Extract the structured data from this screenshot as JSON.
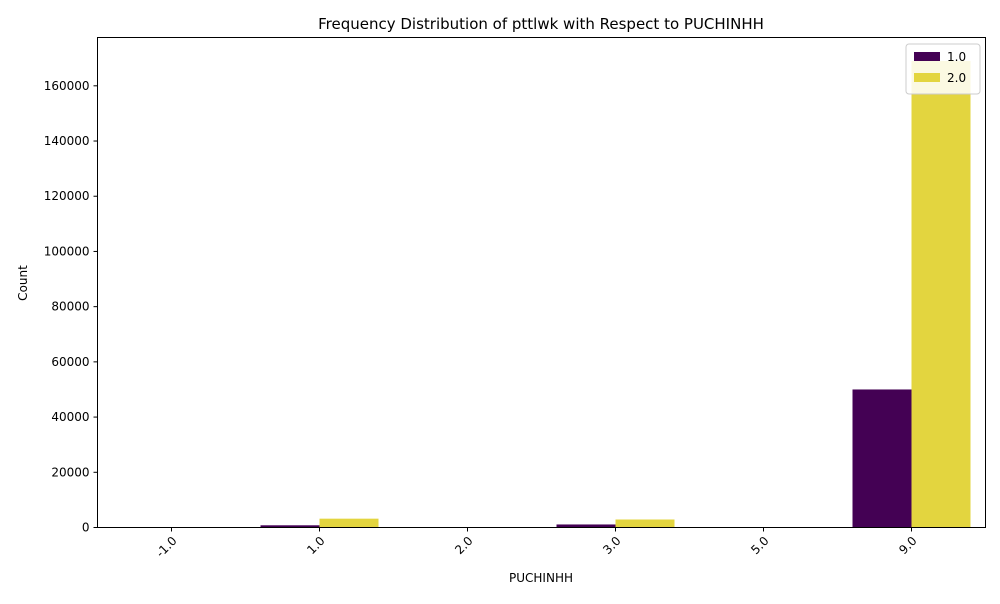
{
  "chart_data": {
    "type": "bar",
    "title": "Frequency Distribution of pttlwk with Respect to PUCHINHH",
    "xlabel": "PUCHINHH",
    "ylabel": "Count",
    "categories": [
      "-1.0",
      "1.0",
      "2.0",
      "3.0",
      "5.0",
      "9.0"
    ],
    "series": [
      {
        "name": "1.0",
        "color": "#440154",
        "values": [
          0,
          800,
          0,
          1100,
          0,
          50000
        ]
      },
      {
        "name": "2.0",
        "color": "#e3d53f",
        "values": [
          0,
          3200,
          0,
          2900,
          0,
          169000
        ]
      }
    ],
    "ylim": [
      0,
      177500
    ],
    "yticks": [
      0,
      20000,
      40000,
      60000,
      80000,
      100000,
      120000,
      140000,
      160000
    ],
    "ytick_labels": [
      "0",
      "20000",
      "40000",
      "60000",
      "80000",
      "100000",
      "120000",
      "140000",
      "160000"
    ],
    "grid": false,
    "legend_position": "top-right"
  }
}
